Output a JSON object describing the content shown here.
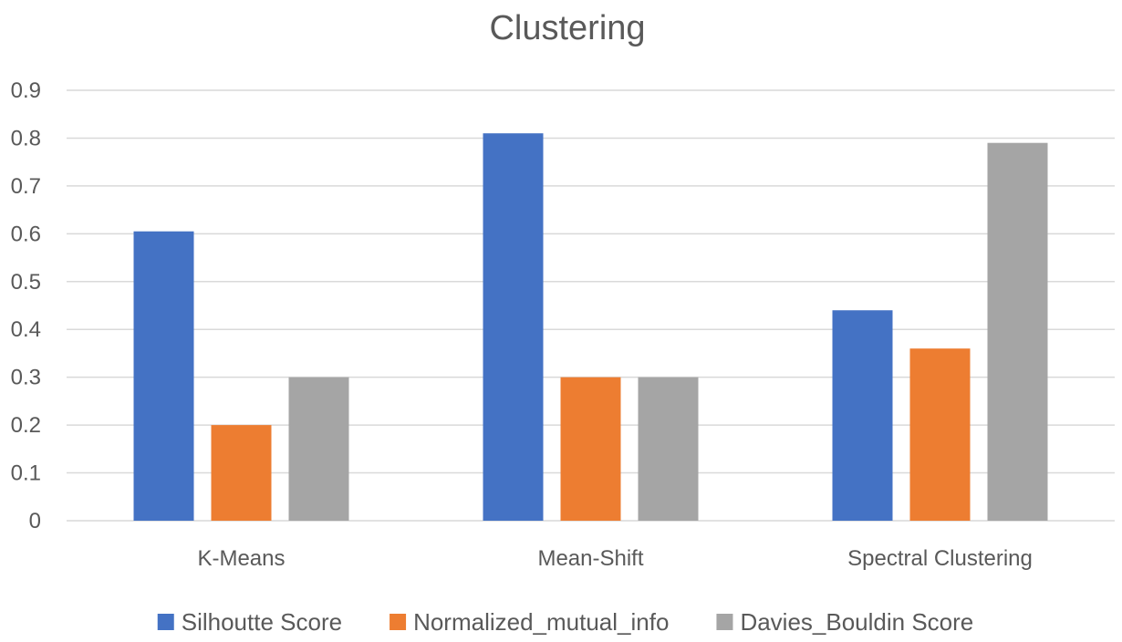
{
  "chart_data": {
    "type": "bar",
    "title": "Clustering",
    "xlabel": "",
    "ylabel": "",
    "ylim": [
      0,
      0.9
    ],
    "yticks": [
      "0",
      "0.1",
      "0.2",
      "0.3",
      "0.4",
      "0.5",
      "0.6",
      "0.7",
      "0.8",
      "0.9"
    ],
    "grid": true,
    "legend_position": "bottom",
    "categories": [
      "K-Means",
      "Mean-Shift",
      "Spectral Clustering"
    ],
    "series": [
      {
        "name": "Silhoutte Score",
        "color": "#4472c4",
        "values": [
          0.605,
          0.81,
          0.44
        ]
      },
      {
        "name": "Normalized_mutual_info",
        "color": "#ed7d31",
        "values": [
          0.2,
          0.3,
          0.36
        ]
      },
      {
        "name": "Davies_Bouldin Score",
        "color": "#a5a5a5",
        "values": [
          0.3,
          0.3,
          0.79
        ]
      }
    ]
  }
}
